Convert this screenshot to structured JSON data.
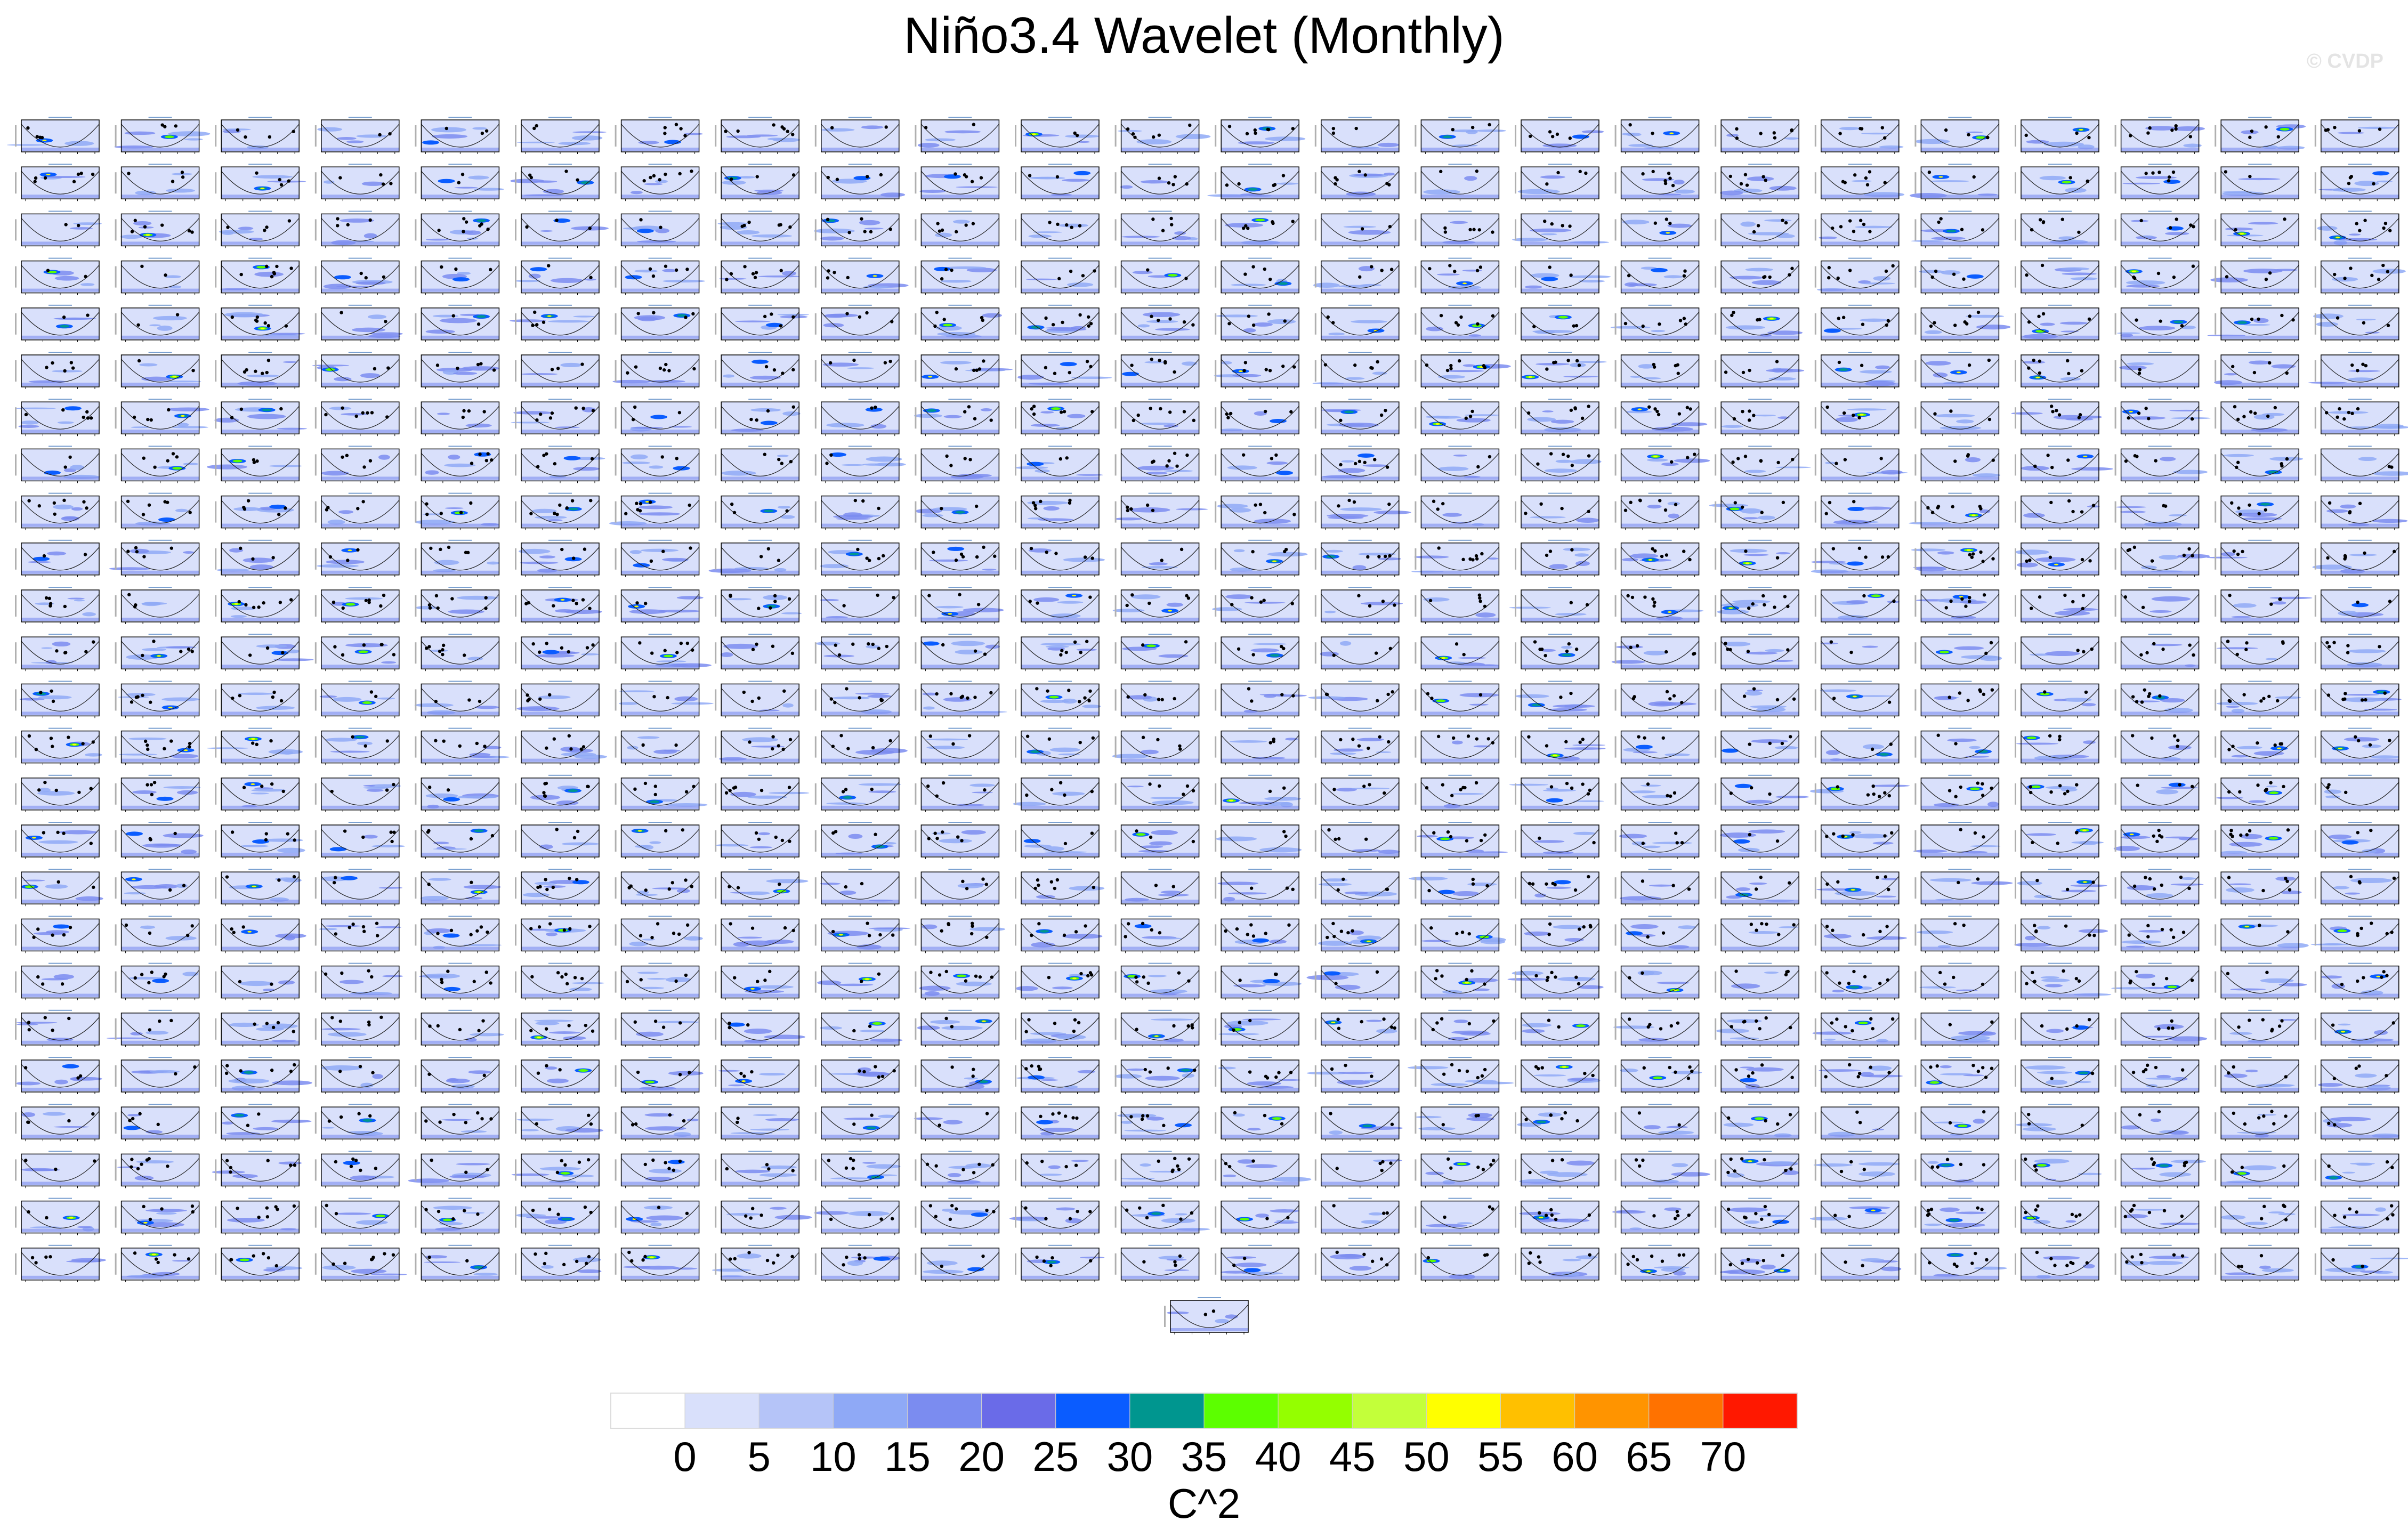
{
  "page": {
    "title": "Niño3.4 Wavelet (Monthly)",
    "watermark": "© CVDP"
  },
  "chart_data": {
    "type": "heatmap",
    "title": "Niño3.4 Wavelet (Monthly)",
    "panel_grid": {
      "rows": 25,
      "columns": 24,
      "extra_panels_last_row": 1,
      "total_panels": 601
    },
    "colorbar": {
      "label": "C^2",
      "levels": [
        0,
        5,
        10,
        15,
        20,
        25,
        30,
        35,
        40,
        45,
        50,
        55,
        60,
        65,
        70
      ],
      "tick_labels": [
        "0",
        "5",
        "10",
        "15",
        "20",
        "25",
        "30",
        "35",
        "40",
        "45",
        "50",
        "55",
        "60",
        "65",
        "70"
      ],
      "colors": [
        "#ffffff",
        "#d9e0fb",
        "#b5c4f8",
        "#8fa9f6",
        "#7b8cf0",
        "#6a6be8",
        "#0a5cff",
        "#00968f",
        "#5cff00",
        "#94ff00",
        "#c3ff3a",
        "#ffff00",
        "#ffc000",
        "#ff9400",
        "#ff7200",
        "#ff1800"
      ]
    }
  }
}
